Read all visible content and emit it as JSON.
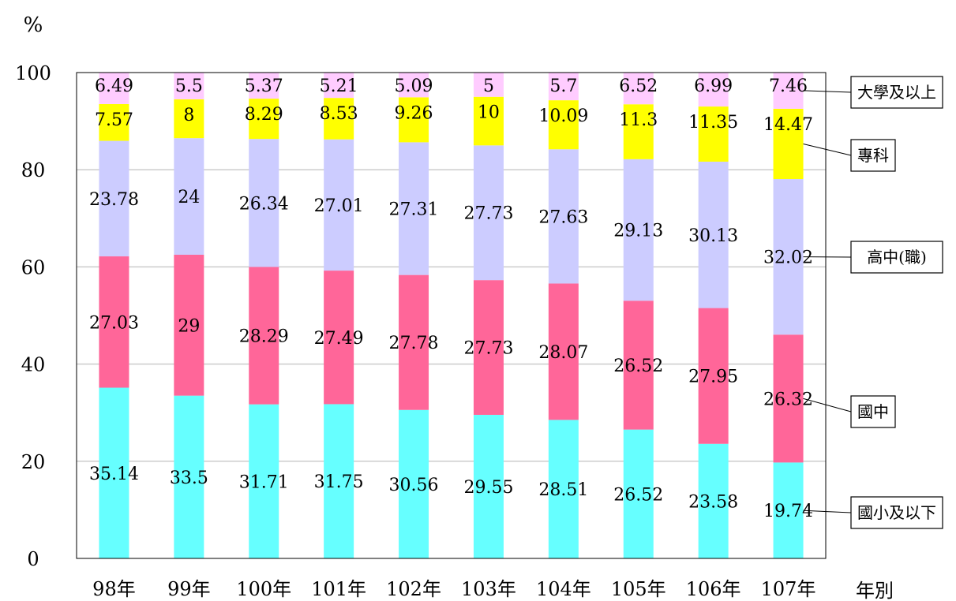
{
  "chart_data": {
    "type": "bar",
    "stacked": true,
    "ylabel": "%",
    "xlabel": "年別",
    "ylim": [
      0,
      100
    ],
    "yticks": [
      0,
      20,
      40,
      60,
      80,
      100
    ],
    "grid": true,
    "legend_placement": "right, callout boxes",
    "categories": [
      "98年",
      "99年",
      "100年",
      "101年",
      "102年",
      "103年",
      "104年",
      "105年",
      "106年",
      "107年"
    ],
    "series": [
      {
        "name": "國小及以下",
        "color": "#66ffff",
        "values": [
          35.14,
          33.5,
          31.71,
          31.75,
          30.56,
          29.55,
          28.51,
          26.52,
          23.58,
          19.74
        ]
      },
      {
        "name": "國中",
        "color": "#ff6699",
        "values": [
          27.03,
          29.0,
          28.29,
          27.49,
          27.78,
          27.73,
          28.07,
          26.52,
          27.95,
          26.32
        ]
      },
      {
        "name": "高中(職)",
        "color": "#ccccff",
        "values": [
          23.78,
          24.0,
          26.34,
          27.01,
          27.31,
          27.73,
          27.63,
          29.13,
          30.13,
          32.02
        ]
      },
      {
        "name": "專科",
        "color": "#ffff00",
        "values": [
          7.57,
          8.0,
          8.29,
          8.53,
          9.26,
          10.0,
          10.09,
          11.3,
          11.35,
          14.47
        ]
      },
      {
        "name": "大學及以上",
        "color": "#ffccff",
        "values": [
          6.49,
          5.5,
          5.37,
          5.21,
          5.09,
          5.0,
          5.7,
          6.52,
          6.99,
          7.46
        ]
      }
    ]
  }
}
